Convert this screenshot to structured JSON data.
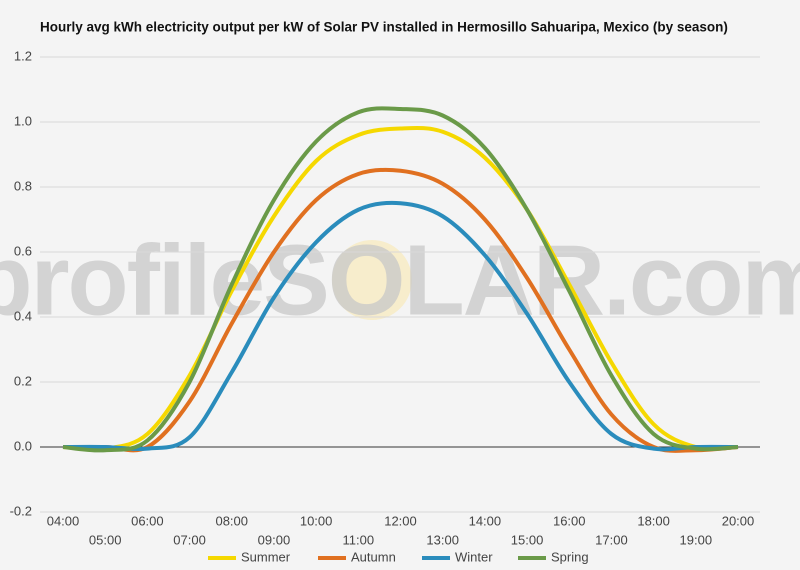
{
  "chart_data": {
    "type": "line",
    "title": "Hourly avg kWh electricity output per kW of Solar PV installed in Hermosillo Sahuaripa, Mexico (by season)",
    "watermark": "profileSOLAR.com",
    "categories": [
      "04:00",
      "05:00",
      "06:00",
      "07:00",
      "08:00",
      "09:00",
      "10:00",
      "11:00",
      "12:00",
      "13:00",
      "14:00",
      "15:00",
      "16:00",
      "17:00",
      "18:00",
      "19:00",
      "20:00"
    ],
    "series": [
      {
        "name": "Summer",
        "color": "#f5d800",
        "values": [
          0.0,
          -0.005,
          0.04,
          0.22,
          0.48,
          0.71,
          0.88,
          0.96,
          0.98,
          0.97,
          0.89,
          0.73,
          0.5,
          0.26,
          0.07,
          0.0,
          0.0
        ]
      },
      {
        "name": "Autumn",
        "color": "#e07020",
        "values": [
          0.0,
          0.0,
          0.0,
          0.14,
          0.38,
          0.6,
          0.76,
          0.84,
          0.85,
          0.81,
          0.7,
          0.52,
          0.3,
          0.1,
          0.0,
          -0.01,
          0.0
        ]
      },
      {
        "name": "Winter",
        "color": "#2a8cbc",
        "values": [
          0.0,
          0.0,
          -0.005,
          0.03,
          0.23,
          0.46,
          0.63,
          0.73,
          0.75,
          0.71,
          0.59,
          0.41,
          0.2,
          0.04,
          -0.005,
          0.0,
          0.0
        ]
      },
      {
        "name": "Spring",
        "color": "#6a9a48",
        "values": [
          0.0,
          -0.01,
          0.02,
          0.2,
          0.5,
          0.76,
          0.94,
          1.03,
          1.04,
          1.02,
          0.92,
          0.73,
          0.48,
          0.22,
          0.04,
          -0.005,
          0.0
        ]
      }
    ],
    "ylim": [
      -0.2,
      1.2
    ],
    "yticks": [
      -0.2,
      {
        "value": 0,
        "label": "0.0"
      },
      0.2,
      0.4,
      0.6,
      0.8,
      {
        "value": 1,
        "label": "1.0"
      },
      1.2
    ],
    "grid": true
  }
}
